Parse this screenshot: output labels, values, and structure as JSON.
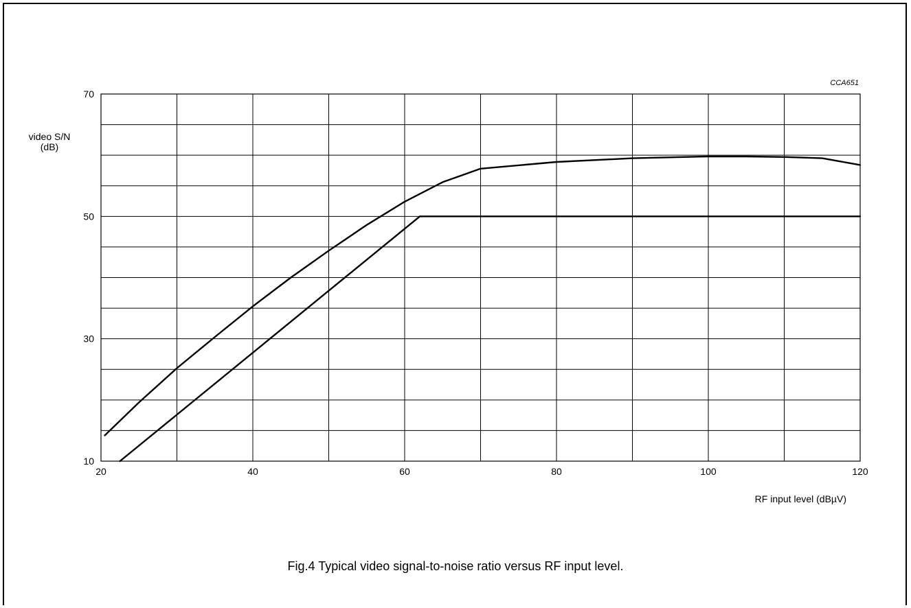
{
  "figure": {
    "code": "CCA651",
    "caption": "Fig.4  Typical video signal-to-noise ratio versus RF input level."
  },
  "chart_data": {
    "type": "line",
    "title": "",
    "xlabel": "RF input level  (dBµV)",
    "ylabel_line1": "video S/N",
    "ylabel_line2": "(dB)",
    "xlim": [
      20,
      120
    ],
    "ylim": [
      10,
      70
    ],
    "x_ticks": [
      20,
      40,
      60,
      80,
      100,
      120
    ],
    "y_ticks": [
      10,
      30,
      50,
      70
    ],
    "x_grid_step": 10,
    "y_grid_step": 5,
    "grid": true,
    "legend": "none",
    "series": [
      {
        "x": [
          20.5,
          25,
          30,
          35,
          40,
          45,
          50,
          55,
          60,
          65,
          70,
          80,
          90,
          100,
          105,
          110,
          115,
          120
        ],
        "y": [
          14.2,
          19.6,
          25.2,
          30.3,
          35.3,
          40.0,
          44.4,
          48.6,
          52.4,
          55.6,
          57.8,
          58.9,
          59.5,
          59.8,
          59.8,
          59.7,
          59.5,
          58.4
        ]
      },
      {
        "x": [
          22.5,
          62,
          120
        ],
        "y": [
          10,
          50,
          50
        ]
      }
    ]
  }
}
